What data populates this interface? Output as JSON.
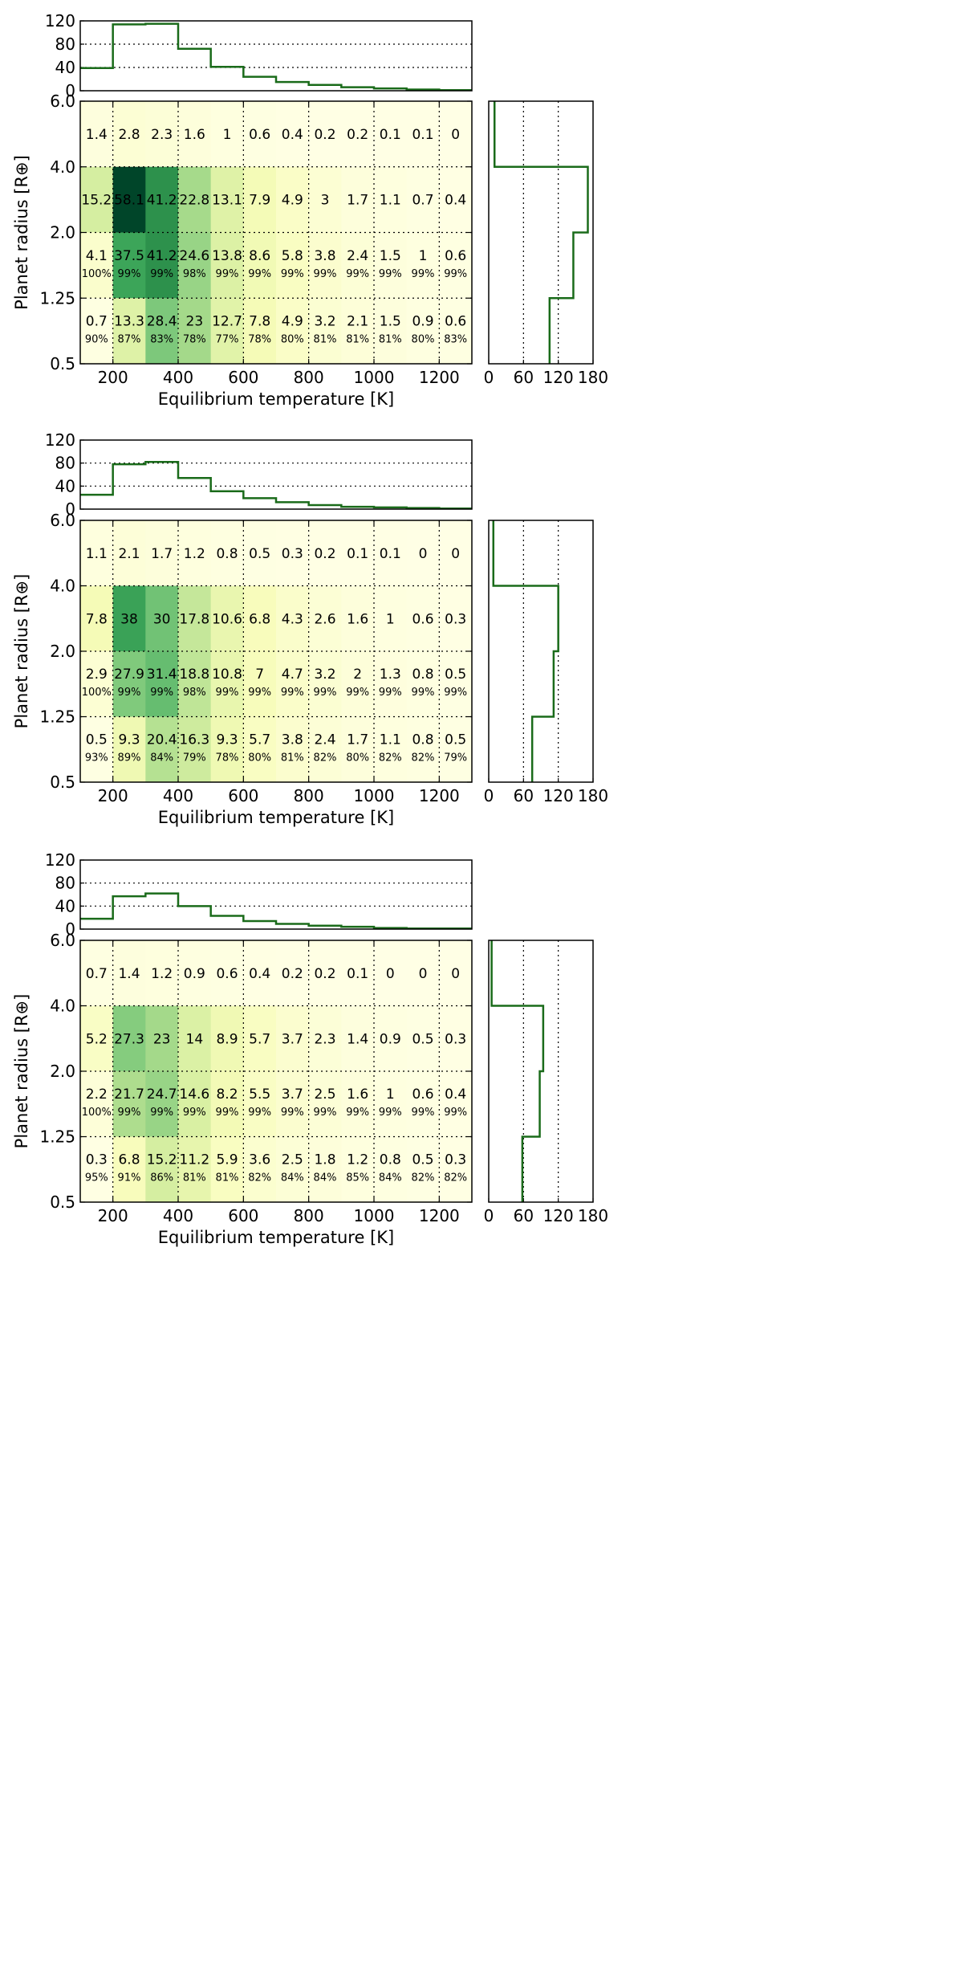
{
  "colors": {
    "hist_line": "#1a6b1a",
    "cell_scale": [
      "#ffffe5",
      "#f7fcb9",
      "#d9f0a3",
      "#addd8e",
      "#78c679",
      "#41ab5d",
      "#238443",
      "#006837",
      "#004529"
    ]
  },
  "chart_data": [
    {
      "type": "heatmap",
      "xlabel": "Equilibrium temperature [K]",
      "ylabel": "Planet radius [R⊕]",
      "x_edges": [
        100,
        200,
        300,
        400,
        500,
        600,
        700,
        800,
        900,
        1000,
        1100,
        1200,
        1300
      ],
      "x_ticks": [
        200,
        400,
        600,
        800,
        1000,
        1200
      ],
      "y_tick_labels": [
        "0.5",
        "1.25",
        "2.0",
        "4.0",
        "6.0"
      ],
      "grid": true,
      "rows": [
        {
          "range": "4.0–6.0",
          "values": [
            1.4,
            2.8,
            2.3,
            1.6,
            1.0,
            0.6,
            0.4,
            0.2,
            0.2,
            0.1,
            0.1,
            0.0
          ],
          "percents": []
        },
        {
          "range": "2.0–4.0",
          "values": [
            15.2,
            58.1,
            41.2,
            22.8,
            13.1,
            7.9,
            4.9,
            3.0,
            1.7,
            1.1,
            0.7,
            0.4
          ],
          "percents": []
        },
        {
          "range": "1.25–2.0",
          "values": [
            4.1,
            37.5,
            41.2,
            24.6,
            13.8,
            8.6,
            5.8,
            3.8,
            2.4,
            1.5,
            1.0,
            0.6
          ],
          "percents": [
            "100%",
            "99%",
            "99%",
            "98%",
            "99%",
            "99%",
            "99%",
            "99%",
            "99%",
            "99%",
            "99%",
            "99%"
          ]
        },
        {
          "range": "0.5–1.25",
          "values": [
            0.7,
            13.3,
            28.4,
            23.0,
            12.7,
            7.8,
            4.9,
            3.2,
            2.1,
            1.5,
            0.9,
            0.6
          ],
          "percents": [
            "90%",
            "87%",
            "83%",
            "78%",
            "77%",
            "78%",
            "80%",
            "81%",
            "81%",
            "81%",
            "80%",
            "83%"
          ]
        }
      ],
      "top_histogram": {
        "type": "step",
        "ylim": [
          0,
          120
        ],
        "yticks": [
          "0",
          "40",
          "80",
          "120"
        ],
        "values": [
          39,
          114,
          115,
          72,
          41,
          24,
          15,
          10,
          6,
          4,
          2,
          1
        ]
      },
      "right_histogram": {
        "type": "step",
        "xlim": [
          0,
          180
        ],
        "xticks": [
          "0",
          "60",
          "120",
          "180"
        ],
        "values": [
          10,
          171,
          146,
          105
        ]
      }
    },
    {
      "type": "heatmap",
      "xlabel": "Equilibrium temperature [K]",
      "ylabel": "Planet radius [R⊕]",
      "x_edges": [
        100,
        200,
        300,
        400,
        500,
        600,
        700,
        800,
        900,
        1000,
        1100,
        1200,
        1300
      ],
      "x_ticks": [
        200,
        400,
        600,
        800,
        1000,
        1200
      ],
      "y_tick_labels": [
        "0.5",
        "1.25",
        "2.0",
        "4.0",
        "6.0"
      ],
      "grid": true,
      "rows": [
        {
          "range": "4.0–6.0",
          "values": [
            1.1,
            2.1,
            1.7,
            1.2,
            0.8,
            0.5,
            0.3,
            0.2,
            0.1,
            0.1,
            0.0,
            0.0
          ],
          "percents": []
        },
        {
          "range": "2.0–4.0",
          "values": [
            7.8,
            38.0,
            30.0,
            17.8,
            10.6,
            6.8,
            4.3,
            2.6,
            1.6,
            1.0,
            0.6,
            0.3
          ],
          "percents": []
        },
        {
          "range": "1.25–2.0",
          "values": [
            2.9,
            27.9,
            31.4,
            18.8,
            10.8,
            7.0,
            4.7,
            3.2,
            2.0,
            1.3,
            0.8,
            0.5
          ],
          "percents": [
            "100%",
            "99%",
            "99%",
            "98%",
            "99%",
            "99%",
            "99%",
            "99%",
            "99%",
            "99%",
            "99%",
            "99%"
          ]
        },
        {
          "range": "0.5–1.25",
          "values": [
            0.5,
            9.3,
            20.4,
            16.3,
            9.3,
            5.7,
            3.8,
            2.4,
            1.7,
            1.1,
            0.8,
            0.5
          ],
          "percents": [
            "93%",
            "89%",
            "84%",
            "79%",
            "78%",
            "80%",
            "81%",
            "82%",
            "80%",
            "82%",
            "82%",
            "79%"
          ]
        }
      ],
      "top_histogram": {
        "type": "step",
        "ylim": [
          0,
          120
        ],
        "yticks": [
          "0",
          "40",
          "80",
          "120"
        ],
        "values": [
          25,
          78,
          82,
          54,
          31,
          19,
          12,
          7,
          4,
          3,
          2,
          1
        ]
      },
      "right_histogram": {
        "type": "step",
        "xlim": [
          0,
          180
        ],
        "xticks": [
          "0",
          "60",
          "120",
          "180"
        ],
        "values": [
          8,
          120,
          112,
          75
        ]
      }
    },
    {
      "type": "heatmap",
      "xlabel": "Equilibrium temperature [K]",
      "ylabel": "Planet radius [R⊕]",
      "x_edges": [
        100,
        200,
        300,
        400,
        500,
        600,
        700,
        800,
        900,
        1000,
        1100,
        1200,
        1300
      ],
      "x_ticks": [
        200,
        400,
        600,
        800,
        1000,
        1200
      ],
      "y_tick_labels": [
        "0.5",
        "1.25",
        "2.0",
        "4.0",
        "6.0"
      ],
      "grid": true,
      "rows": [
        {
          "range": "4.0–6.0",
          "values": [
            0.7,
            1.4,
            1.2,
            0.9,
            0.6,
            0.4,
            0.2,
            0.2,
            0.1,
            0.0,
            0.0,
            0.0
          ],
          "percents": []
        },
        {
          "range": "2.0–4.0",
          "values": [
            5.2,
            27.3,
            23.0,
            14.0,
            8.9,
            5.7,
            3.7,
            2.3,
            1.4,
            0.9,
            0.5,
            0.3
          ],
          "percents": []
        },
        {
          "range": "1.25–2.0",
          "values": [
            2.2,
            21.7,
            24.7,
            14.6,
            8.2,
            5.5,
            3.7,
            2.5,
            1.6,
            1.0,
            0.6,
            0.4
          ],
          "percents": [
            "100%",
            "99%",
            "99%",
            "99%",
            "99%",
            "99%",
            "99%",
            "99%",
            "99%",
            "99%",
            "99%",
            "99%"
          ]
        },
        {
          "range": "0.5–1.25",
          "values": [
            0.3,
            6.8,
            15.2,
            11.2,
            5.9,
            3.6,
            2.5,
            1.8,
            1.2,
            0.8,
            0.5,
            0.3
          ],
          "percents": [
            "95%",
            "91%",
            "86%",
            "81%",
            "81%",
            "82%",
            "84%",
            "84%",
            "85%",
            "84%",
            "82%",
            "82%"
          ]
        }
      ],
      "top_histogram": {
        "type": "step",
        "ylim": [
          0,
          120
        ],
        "yticks": [
          "0",
          "40",
          "80",
          "120"
        ],
        "values": [
          18,
          57,
          62,
          40,
          23,
          14,
          9,
          6,
          4,
          2,
          1,
          1
        ]
      },
      "right_histogram": {
        "type": "step",
        "xlim": [
          0,
          180
        ],
        "xticks": [
          "0",
          "60",
          "120",
          "180"
        ],
        "values": [
          5,
          94,
          88,
          58
        ]
      }
    }
  ]
}
